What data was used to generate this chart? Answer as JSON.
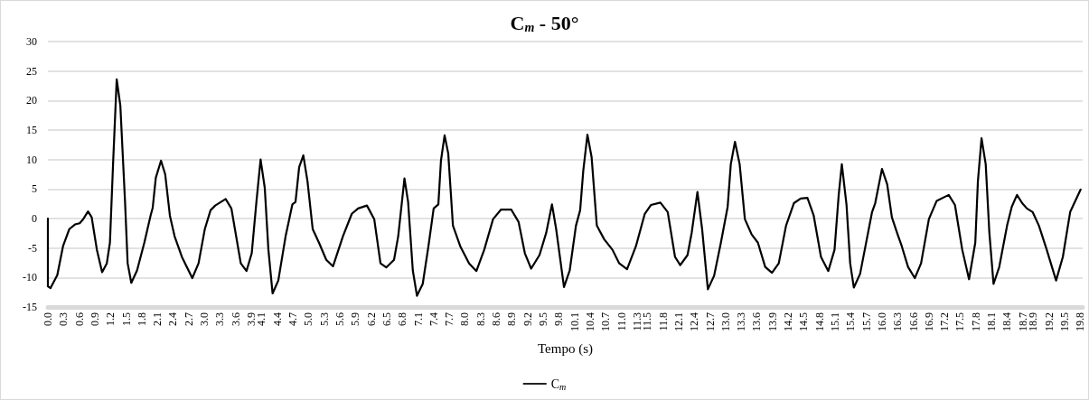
{
  "chart_data": {
    "type": "line",
    "title": "C$_{m}$ - 50°",
    "xlabel": "Tempo (s)",
    "x": [
      0,
      0,
      0.05,
      0.18,
      0.29,
      0.41,
      0.52,
      0.61,
      0.67,
      0.77,
      0.84,
      0.94,
      1.04,
      1.13,
      1.19,
      1.25,
      1.32,
      1.39,
      1.48,
      1.53,
      1.6,
      1.71,
      1.85,
      1.97,
      2.01,
      2.07,
      2.17,
      2.25,
      2.34,
      2.43,
      2.57,
      2.77,
      2.89,
      3.01,
      3.12,
      3.21,
      3.41,
      3.52,
      3.7,
      3.81,
      3.91,
      4.0,
      4.08,
      4.16,
      4.23,
      4.31,
      4.42,
      4.56,
      4.69,
      4.75,
      4.82,
      4.9,
      4.98,
      5.08,
      5.2,
      5.34,
      5.47,
      5.66,
      5.83,
      5.95,
      6.12,
      6.26,
      6.38,
      6.49,
      6.64,
      6.72,
      6.84,
      6.91,
      7.0,
      7.08,
      7.19,
      7.3,
      7.4,
      7.49,
      7.54,
      7.61,
      7.68,
      7.77,
      7.91,
      8.08,
      8.22,
      8.37,
      8.54,
      8.69,
      8.89,
      9.03,
      9.15,
      9.27,
      9.43,
      9.56,
      9.67,
      9.75,
      9.9,
      10.01,
      10.13,
      10.21,
      10.27,
      10.35,
      10.43,
      10.53,
      10.67,
      10.83,
      10.96,
      11.11,
      11.28,
      11.45,
      11.57,
      11.75,
      11.89,
      12.03,
      12.13,
      12.27,
      12.35,
      12.46,
      12.55,
      12.66,
      12.78,
      12.91,
      13.04,
      13.1,
      13.18,
      13.27,
      13.37,
      13.5,
      13.62,
      13.76,
      13.89,
      14.02,
      14.16,
      14.31,
      14.44,
      14.57,
      14.69,
      14.83,
      14.97,
      15.09,
      15.17,
      15.23,
      15.32,
      15.39,
      15.46,
      15.58,
      15.72,
      15.81,
      15.87,
      16.0,
      16.1,
      16.19,
      16.3,
      16.38,
      16.5,
      16.63,
      16.75,
      16.9,
      17.05,
      17.28,
      17.4,
      17.54,
      17.67,
      17.79,
      17.84,
      17.91,
      17.99,
      18.06,
      18.14,
      18.25,
      18.4,
      18.49,
      18.59,
      18.69,
      18.78,
      18.89,
      19.01,
      19.15,
      19.34,
      19.47,
      19.61,
      19.81
    ],
    "series": [
      {
        "name": "C$_{m}$",
        "color": "#000000",
        "values": [
          0,
          -11.5,
          -11.8,
          -9.6,
          -4.7,
          -1.8,
          -1.0,
          -0.8,
          -0.2,
          1.2,
          0.2,
          -5.3,
          -9.1,
          -7.6,
          -4.1,
          9.2,
          23.6,
          19.1,
          2.8,
          -7.6,
          -10.9,
          -8.8,
          -4.1,
          0.5,
          1.8,
          6.9,
          9.8,
          7.5,
          0.5,
          -3.0,
          -6.5,
          -10.1,
          -7.6,
          -1.8,
          1.4,
          2.2,
          3.3,
          1.7,
          -7.6,
          -8.9,
          -5.9,
          2.8,
          10.0,
          5.2,
          -5.3,
          -12.7,
          -10.5,
          -3.0,
          2.4,
          2.8,
          8.7,
          10.7,
          6.3,
          -1.8,
          -4.1,
          -7.0,
          -8.1,
          -3.0,
          0.8,
          1.7,
          2.2,
          -0.1,
          -7.6,
          -8.3,
          -7.0,
          -3.0,
          6.8,
          2.8,
          -8.8,
          -13.1,
          -11.1,
          -4.7,
          1.7,
          2.4,
          9.8,
          14.1,
          11.0,
          -1.2,
          -4.7,
          -7.6,
          -8.9,
          -5.3,
          -0.1,
          1.5,
          1.5,
          -0.6,
          -5.9,
          -8.5,
          -6.2,
          -2.4,
          2.4,
          -1.8,
          -11.6,
          -8.8,
          -1.2,
          1.4,
          8.1,
          14.2,
          10.4,
          -1.2,
          -3.5,
          -5.3,
          -7.6,
          -8.6,
          -4.7,
          0.8,
          2.3,
          2.7,
          1.1,
          -6.5,
          -7.9,
          -6.2,
          -2.4,
          4.5,
          -1.8,
          -12.0,
          -9.7,
          -4.1,
          2.0,
          9.2,
          13.0,
          9.2,
          -0.1,
          -2.7,
          -4.1,
          -8.2,
          -9.2,
          -7.6,
          -1.2,
          2.6,
          3.4,
          3.5,
          0.5,
          -6.5,
          -8.9,
          -5.3,
          4.0,
          9.2,
          2.3,
          -7.6,
          -11.7,
          -9.4,
          -3.0,
          1.1,
          2.6,
          8.4,
          5.8,
          0.2,
          -2.7,
          -4.7,
          -8.2,
          -10.1,
          -7.6,
          -0.1,
          3.0,
          4.0,
          2.3,
          -5.3,
          -10.3,
          -4.1,
          6.3,
          13.6,
          9.2,
          -2.4,
          -11.1,
          -8.2,
          -1.2,
          2.0,
          4.0,
          2.6,
          1.7,
          1.1,
          -1.2,
          -5.0,
          -10.5,
          -6.5,
          1.1,
          4.9
        ]
      }
    ],
    "xlim": [
      0,
      19.85
    ],
    "xticks": [
      {
        "value": 0,
        "label": "0.0"
      },
      0.3,
      0.6,
      0.9,
      1.2,
      1.5,
      1.8,
      2.1,
      2.4,
      2.7,
      {
        "value": 3,
        "label": "3.0"
      },
      3.3,
      3.6,
      3.9,
      4.1,
      4.4,
      4.7,
      {
        "value": 5,
        "label": "5.0"
      },
      5.3,
      5.6,
      5.9,
      6.2,
      6.5,
      6.8,
      7.1,
      7.4,
      7.7,
      {
        "value": 8,
        "label": "8.0"
      },
      8.3,
      8.6,
      8.9,
      9.2,
      9.5,
      9.8,
      10.1,
      10.4,
      10.7,
      {
        "value": 11,
        "label": "11.0"
      },
      11.3,
      11.5,
      11.8,
      12.1,
      12.4,
      12.7,
      {
        "value": 13,
        "label": "13.0"
      },
      13.3,
      13.6,
      13.9,
      14.2,
      14.5,
      14.8,
      15.1,
      15.4,
      15.7,
      {
        "value": 16,
        "label": "16.0"
      },
      16.3,
      16.6,
      16.9,
      17.2,
      17.5,
      17.8,
      18.1,
      18.4,
      18.7,
      18.9,
      19.2,
      19.5,
      19.8
    ],
    "ylim": [
      -15,
      30
    ],
    "yticks": [
      -15,
      -10,
      -5,
      0,
      5,
      10,
      15,
      20,
      25,
      30
    ],
    "grid": "y",
    "legend": "bottom",
    "marker": "none",
    "line_style": "solid"
  }
}
